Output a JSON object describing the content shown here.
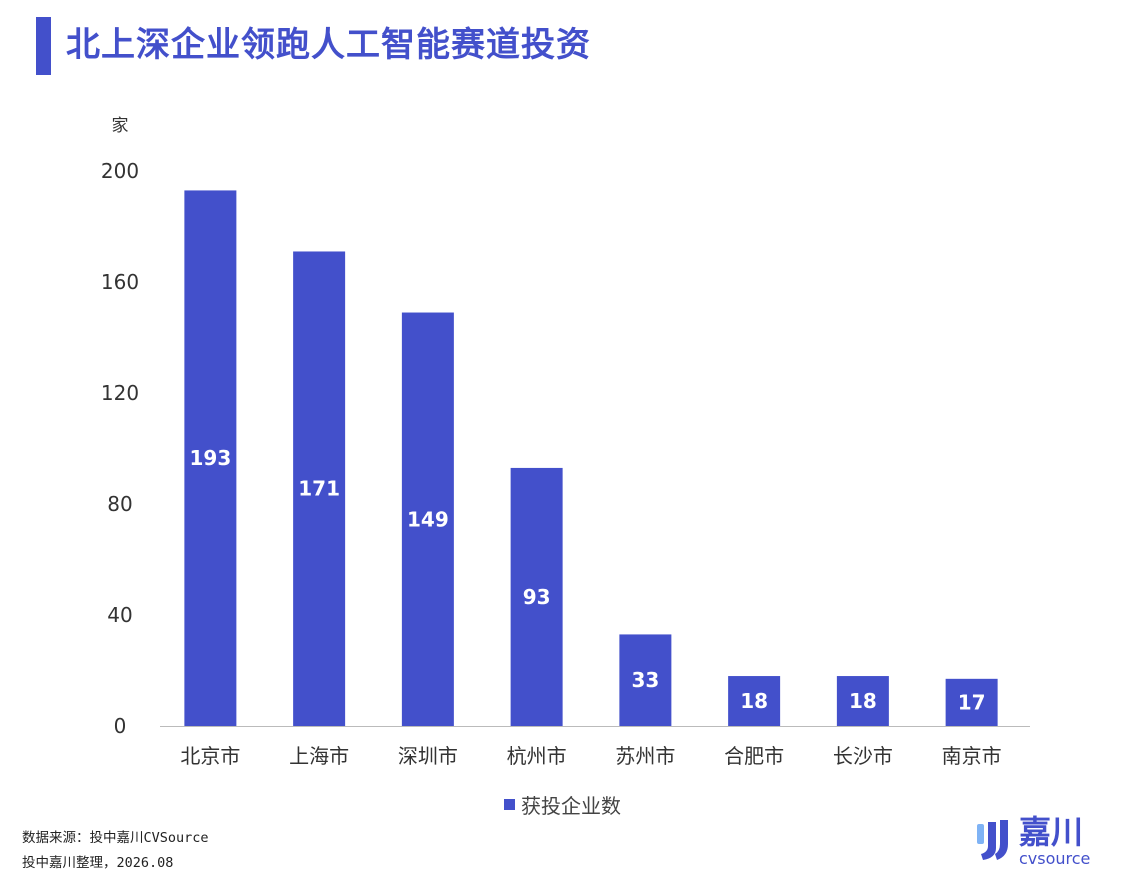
{
  "title": "北上深企业领跑人工智能赛道投资",
  "colors": {
    "accent": "#4350CB",
    "bar": "#4350CB",
    "axis": "#BBBBBB",
    "tick_text": "#333333"
  },
  "chart_data": {
    "type": "bar",
    "title": "北上深企业领跑人工智能赛道投资",
    "ylabel": "家",
    "xlabel": "",
    "ylim": [
      0,
      200
    ],
    "yticks": [
      0,
      40,
      80,
      120,
      160,
      200
    ],
    "categories": [
      "北京市",
      "上海市",
      "深圳市",
      "杭州市",
      "苏州市",
      "合肥市",
      "长沙市",
      "南京市"
    ],
    "series": [
      {
        "name": "获投企业数",
        "values": [
          193,
          171,
          149,
          93,
          33,
          18,
          18,
          17
        ]
      }
    ],
    "grid": false,
    "legend_position": "bottom",
    "data_labels": "inside-center"
  },
  "source": {
    "line1": "数据来源：投中嘉川CVSource",
    "line2": "投中嘉川整理，2026.08"
  },
  "logo": {
    "name": "嘉川",
    "sub": "cvsource",
    "icon": "jiachuan-logo-icon"
  }
}
